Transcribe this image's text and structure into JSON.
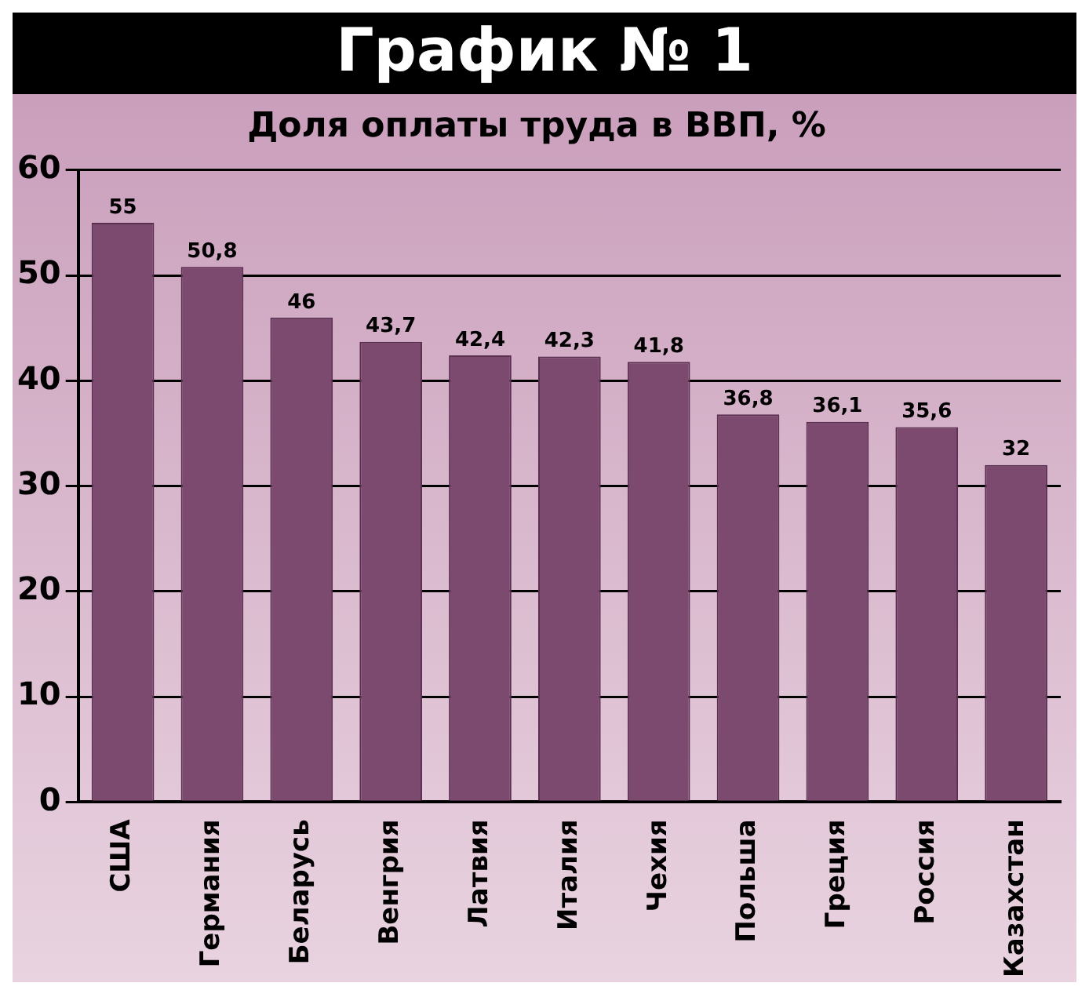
{
  "chart_data": {
    "type": "bar",
    "title": "График № 1",
    "subtitle": "Доля оплаты труда в ВВП, %",
    "categories": [
      "США",
      "Германия",
      "Беларусь",
      "Венгрия",
      "Латвия",
      "Италия",
      "Чехия",
      "Польша",
      "Греция",
      "Россия",
      "Казахстан"
    ],
    "values": [
      55,
      50.8,
      46,
      43.7,
      42.4,
      42.3,
      41.8,
      36.8,
      36.1,
      35.6,
      32
    ],
    "value_labels": [
      "55",
      "50,8",
      "46",
      "43,7",
      "42,4",
      "42,3",
      "41,8",
      "36,8",
      "36,1",
      "35,6",
      "32"
    ],
    "color": "#7b4a6e",
    "ylim": [
      0,
      60
    ],
    "yticks": [
      0,
      10,
      20,
      30,
      40,
      50,
      60
    ],
    "grid": "y"
  }
}
